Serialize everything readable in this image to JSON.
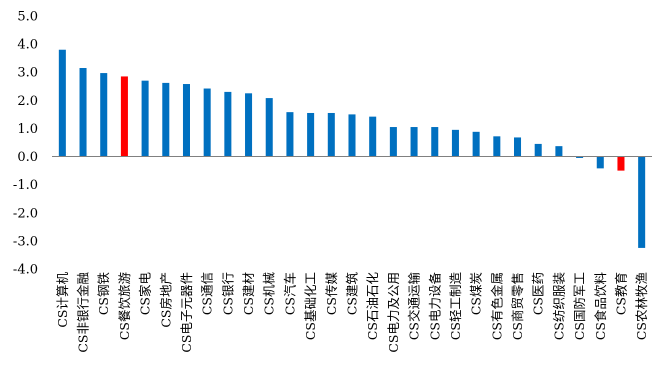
{
  "chart_data": {
    "type": "bar",
    "title": "",
    "xlabel": "",
    "ylabel": "",
    "ylim": [
      -4.0,
      5.0
    ],
    "yticks": [
      "5.0",
      "4.0",
      "3.0",
      "2.0",
      "1.0",
      "0.0",
      "-1.0",
      "-2.0",
      "-3.0",
      "-4.0"
    ],
    "grid": false,
    "legend": "none",
    "base_color": "#0070C0",
    "highlight_color": "#FF0000",
    "categories": [
      "CS计算机",
      "CS非银行金融",
      "CS钢铁",
      "CS餐饮旅游",
      "CS家电",
      "CS房地产",
      "CS电子元器件",
      "CS通信",
      "CS银行",
      "CS建材",
      "CS机械",
      "CS汽车",
      "CS基础化工",
      "CS传媒",
      "CS建筑",
      "CS石油石化",
      "CS电力及公用",
      "CS交通运输",
      "CS电力设备",
      "CS轻工制造",
      "CS煤炭",
      "CS有色金属",
      "CS商贸零售",
      "CS医药",
      "CS纺织服装",
      "CS国防军工",
      "CS食品饮料",
      "CS教育",
      "CS农林牧渔"
    ],
    "values": [
      3.8,
      3.15,
      2.97,
      2.85,
      2.7,
      2.62,
      2.58,
      2.42,
      2.3,
      2.25,
      2.08,
      1.58,
      1.55,
      1.55,
      1.5,
      1.42,
      1.05,
      1.05,
      1.05,
      0.95,
      0.88,
      0.72,
      0.68,
      0.45,
      0.37,
      -0.05,
      -0.42,
      -0.5,
      -3.25
    ],
    "highlighted": [
      "CS餐饮旅游",
      "CS教育"
    ]
  }
}
